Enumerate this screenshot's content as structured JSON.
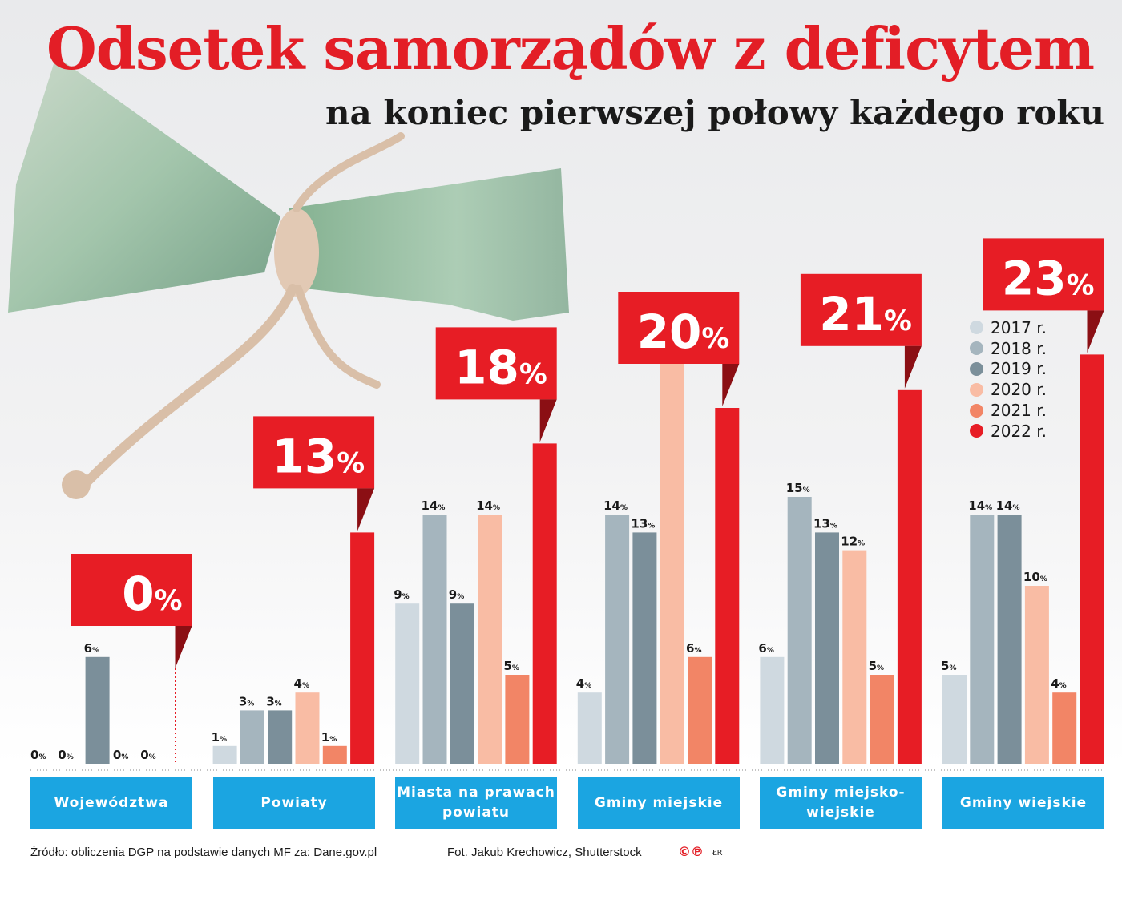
{
  "chart_data": {
    "type": "bar",
    "title": "Odsetek samorządów z deficytem",
    "subtitle": "na koniec pierwszej połowy każdego roku",
    "categories": [
      "Województwa",
      "Powiaty",
      "Miasta na prawach powiatu",
      "Gminy miejskie",
      "Gminy miejsko-wiejskie",
      "Gminy wiejskie"
    ],
    "series": [
      {
        "name": "2017 r.",
        "color": "#cfd9e0",
        "values": [
          0,
          1,
          9,
          4,
          6,
          5
        ]
      },
      {
        "name": "2018 r.",
        "color": "#a5b5be",
        "values": [
          0,
          3,
          14,
          14,
          15,
          14
        ]
      },
      {
        "name": "2019 r.",
        "color": "#7b8f9a",
        "values": [
          6,
          3,
          9,
          13,
          13,
          14
        ]
      },
      {
        "name": "2020 r.",
        "color": "#f9bca4",
        "values": [
          0,
          4,
          14,
          25,
          12,
          10
        ]
      },
      {
        "name": "2021 r.",
        "color": "#f28566",
        "values": [
          0,
          1,
          5,
          6,
          5,
          4
        ]
      },
      {
        "name": "2022 r.",
        "color": "#e71d25",
        "values": [
          0,
          13,
          18,
          20,
          21,
          23
        ]
      }
    ],
    "unit": "%",
    "ylim": [
      0,
      25
    ],
    "grid": false,
    "legend": "right",
    "highlight_series": "2022 r."
  },
  "footer": {
    "source": "Źródło: obliczenia DGP na podstawie danych MF za: Dane.gov.pl",
    "photo": "Fot. Jakub Krechowicz, Shutterstock",
    "copyright_mark": "©℗",
    "initials": "ŁR"
  }
}
